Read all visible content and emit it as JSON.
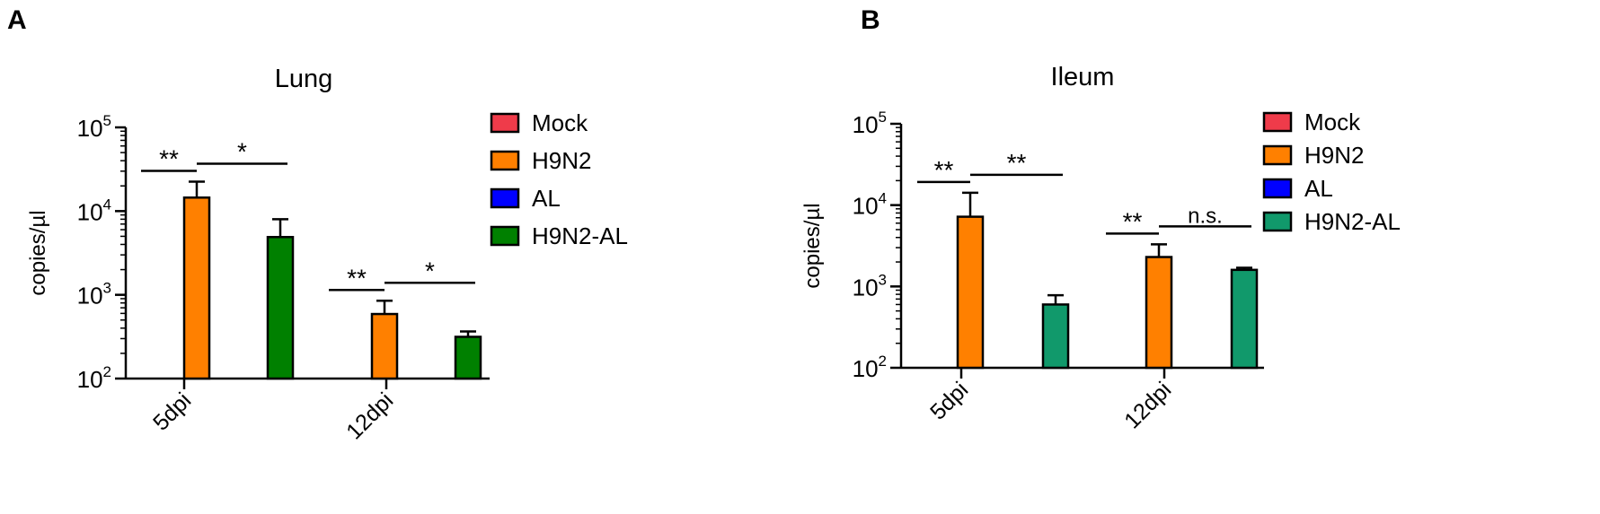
{
  "panels": [
    {
      "letter": "A"
    },
    {
      "letter": "B"
    }
  ],
  "chart_data": [
    {
      "type": "bar",
      "title": "Lung",
      "ylabel": "copies/µl",
      "xlabel": "",
      "yscale": "log",
      "ylim": [
        100,
        100000
      ],
      "yticks": [
        {
          "base": "10",
          "exp": "2"
        },
        {
          "base": "10",
          "exp": "3"
        },
        {
          "base": "10",
          "exp": "4"
        },
        {
          "base": "10",
          "exp": "5"
        }
      ],
      "categories": [
        "5dpi",
        "12dpi"
      ],
      "series": [
        {
          "name": "Mock",
          "color": "#ef3b4a",
          "values": [
            0,
            0
          ],
          "errors": [
            0,
            0
          ]
        },
        {
          "name": "H9N2",
          "color": "#ff8000",
          "values": [
            14500,
            590
          ],
          "errors": [
            8000,
            260
          ]
        },
        {
          "name": "AL",
          "color": "#0000ff",
          "values": [
            0,
            0
          ],
          "errors": [
            0,
            0
          ]
        },
        {
          "name": "H9N2-AL",
          "color": "#008000",
          "values": [
            4900,
            315
          ],
          "errors": [
            3100,
            50
          ]
        }
      ],
      "significance": [
        {
          "category": "5dpi",
          "from": "Mock",
          "to": "H9N2",
          "label": "**"
        },
        {
          "category": "5dpi",
          "from": "H9N2",
          "to": "H9N2-AL",
          "label": "*"
        },
        {
          "category": "12dpi",
          "from": "Mock",
          "to": "H9N2",
          "label": "**"
        },
        {
          "category": "12dpi",
          "from": "H9N2",
          "to": "H9N2-AL",
          "label": "*"
        }
      ],
      "legend_position": "right"
    },
    {
      "type": "bar",
      "title": "Ileum",
      "ylabel": "copies/µl",
      "xlabel": "",
      "yscale": "log",
      "ylim": [
        100,
        100000
      ],
      "yticks": [
        {
          "base": "10",
          "exp": "2"
        },
        {
          "base": "10",
          "exp": "3"
        },
        {
          "base": "10",
          "exp": "4"
        },
        {
          "base": "10",
          "exp": "5"
        }
      ],
      "categories": [
        "5dpi",
        "12dpi"
      ],
      "series": [
        {
          "name": "Mock",
          "color": "#ef3b4a",
          "values": [
            0,
            0
          ],
          "errors": [
            0,
            0
          ]
        },
        {
          "name": "H9N2",
          "color": "#ff8000",
          "values": [
            7200,
            2300
          ],
          "errors": [
            7000,
            1000
          ]
        },
        {
          "name": "AL",
          "color": "#0000ff",
          "values": [
            0,
            0
          ],
          "errors": [
            0,
            0
          ]
        },
        {
          "name": "H9N2-AL",
          "color": "#11996b",
          "values": [
            600,
            1600
          ],
          "errors": [
            180,
            100
          ]
        }
      ],
      "significance": [
        {
          "category": "5dpi",
          "from": "Mock",
          "to": "H9N2",
          "label": "**"
        },
        {
          "category": "5dpi",
          "from": "H9N2",
          "to": "H9N2-AL",
          "label": "**"
        },
        {
          "category": "12dpi",
          "from": "Mock",
          "to": "H9N2",
          "label": "**"
        },
        {
          "category": "12dpi",
          "from": "H9N2",
          "to": "H9N2-AL",
          "label": "n.s."
        }
      ],
      "legend_position": "right"
    }
  ]
}
